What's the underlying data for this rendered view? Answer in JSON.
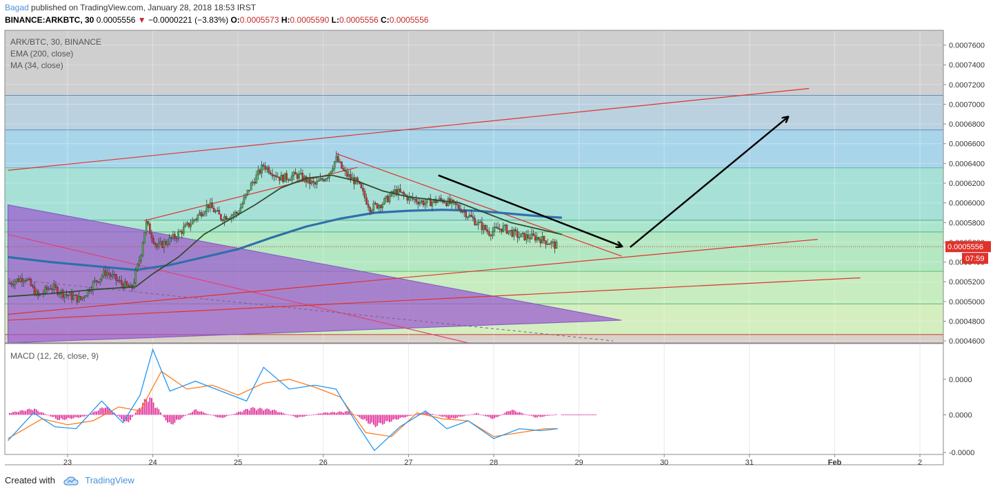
{
  "header": {
    "author": "Bagad",
    "published": "published on TradingView.com, January 28, 2018 18:53 IRST"
  },
  "quote": {
    "symbol": "BINANCE:ARKBTC, 30",
    "last": "0.0005556",
    "change_arrow": "▼",
    "change": "−0.0000221 (−3.83%)",
    "o_label": "O:",
    "o": "0.0005573",
    "h_label": "H:",
    "h": "0.0005590",
    "l_label": "L:",
    "l": "0.0005556",
    "c_label": "C:",
    "c": "0.0005556"
  },
  "legend": {
    "title": "ARK/BTC, 30, BINANCE",
    "ema": "EMA (200, close)",
    "ma": "MA (34, close)",
    "macd": "MACD (12, 26, close, 9)"
  },
  "footer": {
    "created_with": "Created with",
    "brand": "TradingView"
  },
  "colors": {
    "up": "#4caf50",
    "down": "#d32f2f",
    "ema": "#2f6faa",
    "ma": "#2e4d2f",
    "macd_line": "#2196f3",
    "signal_line": "#ff7a1a",
    "hist": "#e0309a",
    "trend_red": "#e0312b",
    "triangle": "#9b59d0",
    "price_tag": "#e0312b"
  },
  "chart_data": [
    {
      "type": "candlestick",
      "title": "ARK/BTC, 30, BINANCE",
      "x_tick_labels": [
        "23",
        "24",
        "25",
        "26",
        "27",
        "28",
        "29",
        "30",
        "31",
        "Feb",
        "2"
      ],
      "y_tick_labels": [
        "0.0004600",
        "0.0004800",
        "0.0005000",
        "0.0005200",
        "0.0005400",
        "0.0005600",
        "0.0005800",
        "0.0006000",
        "0.0006200",
        "0.0006400",
        "0.0006600",
        "0.0006800",
        "0.0007000",
        "0.0007200",
        "0.0007400",
        "0.0007600"
      ],
      "ylim": [
        0.000458,
        0.000775
      ],
      "last_price_label": "0.0005556",
      "countdown_label": "07:59",
      "close_path": [
        {
          "x": 22.3,
          "y": 0.000518
        },
        {
          "x": 22.5,
          "y": 0.000525
        },
        {
          "x": 22.65,
          "y": 0.000505
        },
        {
          "x": 22.8,
          "y": 0.000515
        },
        {
          "x": 22.95,
          "y": 0.000508
        },
        {
          "x": 23.15,
          "y": 0.000502
        },
        {
          "x": 23.3,
          "y": 0.000518
        },
        {
          "x": 23.45,
          "y": 0.00053
        },
        {
          "x": 23.6,
          "y": 0.00052
        },
        {
          "x": 23.75,
          "y": 0.000512
        },
        {
          "x": 23.85,
          "y": 0.000545
        },
        {
          "x": 23.92,
          "y": 0.00058
        },
        {
          "x": 24.05,
          "y": 0.000555
        },
        {
          "x": 24.25,
          "y": 0.000565
        },
        {
          "x": 24.45,
          "y": 0.00058
        },
        {
          "x": 24.65,
          "y": 0.000598
        },
        {
          "x": 24.8,
          "y": 0.000585
        },
        {
          "x": 25.0,
          "y": 0.00059
        },
        {
          "x": 25.15,
          "y": 0.000618
        },
        {
          "x": 25.3,
          "y": 0.000638
        },
        {
          "x": 25.5,
          "y": 0.000625
        },
        {
          "x": 25.7,
          "y": 0.000628
        },
        {
          "x": 25.9,
          "y": 0.000618
        },
        {
          "x": 26.05,
          "y": 0.000628
        },
        {
          "x": 26.15,
          "y": 0.000645
        },
        {
          "x": 26.25,
          "y": 0.00063
        },
        {
          "x": 26.4,
          "y": 0.00062
        },
        {
          "x": 26.55,
          "y": 0.000595
        },
        {
          "x": 26.7,
          "y": 0.0006
        },
        {
          "x": 26.85,
          "y": 0.000612
        },
        {
          "x": 27.0,
          "y": 0.000605
        },
        {
          "x": 27.2,
          "y": 0.0006
        },
        {
          "x": 27.4,
          "y": 0.000603
        },
        {
          "x": 27.6,
          "y": 0.000595
        },
        {
          "x": 27.8,
          "y": 0.00058
        },
        {
          "x": 27.95,
          "y": 0.00057
        },
        {
          "x": 28.1,
          "y": 0.000575
        },
        {
          "x": 28.3,
          "y": 0.000566
        },
        {
          "x": 28.5,
          "y": 0.000565
        },
        {
          "x": 28.65,
          "y": 0.00056
        },
        {
          "x": 28.75,
          "y": 0.0005556
        }
      ],
      "ema_200": [
        {
          "x": 22.3,
          "y": 0.000545
        },
        {
          "x": 22.8,
          "y": 0.00054
        },
        {
          "x": 23.3,
          "y": 0.000536
        },
        {
          "x": 23.8,
          "y": 0.000532
        },
        {
          "x": 24.2,
          "y": 0.000537
        },
        {
          "x": 24.6,
          "y": 0.000545
        },
        {
          "x": 25.0,
          "y": 0.000553
        },
        {
          "x": 25.4,
          "y": 0.000565
        },
        {
          "x": 25.8,
          "y": 0.000576
        },
        {
          "x": 26.2,
          "y": 0.000584
        },
        {
          "x": 26.6,
          "y": 0.00059
        },
        {
          "x": 27.0,
          "y": 0.000592
        },
        {
          "x": 27.4,
          "y": 0.000593
        },
        {
          "x": 27.8,
          "y": 0.000592
        },
        {
          "x": 28.2,
          "y": 0.000589
        },
        {
          "x": 28.6,
          "y": 0.000586
        },
        {
          "x": 28.8,
          "y": 0.000585
        }
      ],
      "ma_34": [
        {
          "x": 22.3,
          "y": 0.000505
        },
        {
          "x": 22.8,
          "y": 0.000508
        },
        {
          "x": 23.3,
          "y": 0.000512
        },
        {
          "x": 23.8,
          "y": 0.000515
        },
        {
          "x": 24.0,
          "y": 0.000528
        },
        {
          "x": 24.3,
          "y": 0.000545
        },
        {
          "x": 24.6,
          "y": 0.000568
        },
        {
          "x": 24.9,
          "y": 0.000583
        },
        {
          "x": 25.2,
          "y": 0.000598
        },
        {
          "x": 25.5,
          "y": 0.000615
        },
        {
          "x": 25.8,
          "y": 0.000625
        },
        {
          "x": 26.1,
          "y": 0.000628
        },
        {
          "x": 26.4,
          "y": 0.000622
        },
        {
          "x": 26.7,
          "y": 0.000612
        },
        {
          "x": 27.0,
          "y": 0.000606
        },
        {
          "x": 27.3,
          "y": 0.000603
        },
        {
          "x": 27.6,
          "y": 0.0006
        },
        {
          "x": 27.9,
          "y": 0.00059
        },
        {
          "x": 28.2,
          "y": 0.00058
        },
        {
          "x": 28.5,
          "y": 0.000574
        },
        {
          "x": 28.8,
          "y": 0.000568
        }
      ],
      "fib_levels": [
        0.000709,
        0.000674,
        0.0006355,
        0.0005825,
        0.0005705,
        0.0005305,
        0.0004975,
        0.0004665
      ],
      "annotations": {
        "upper_channel_line": [
          [
            22.3,
            0.000633
          ],
          [
            31.7,
            0.000716
          ]
        ],
        "lower_channel_line_1": [
          [
            22.3,
            0.000487
          ],
          [
            31.8,
            0.000563
          ]
        ],
        "lower_channel_line_2": [
          [
            22.3,
            0.000481
          ],
          [
            32.3,
            0.000524
          ]
        ],
        "descending_line": [
          [
            26.15,
            0.00065
          ],
          [
            29.5,
            0.000546
          ]
        ],
        "rising_line_from_low": [
          [
            23.9,
            0.000582
          ],
          [
            26.4,
            0.000636
          ]
        ],
        "down_arrow": [
          [
            27.35,
            0.000628
          ],
          [
            29.5,
            0.000556
          ]
        ],
        "up_arrow": [
          [
            29.6,
            0.000555
          ],
          [
            31.45,
            0.000687
          ]
        ],
        "triangle": [
          [
            22.3,
            0.000598
          ],
          [
            29.5,
            0.000481
          ],
          [
            22.3,
            0.000458
          ]
        ]
      }
    },
    {
      "type": "macd",
      "title": "MACD (12, 26, close, 9)",
      "y_tick_labels": [
        "0.0000",
        "0.0000",
        "-0.0000"
      ],
      "ylim": [
        -1e-05,
        1.8e-05
      ],
      "macd_line": [
        {
          "x": 22.3,
          "y": -6.5e-06
        },
        {
          "x": 22.6,
          "y": 5e-07
        },
        {
          "x": 22.85,
          "y": -3e-06
        },
        {
          "x": 23.1,
          "y": -3.5e-06
        },
        {
          "x": 23.4,
          "y": 3.5e-06
        },
        {
          "x": 23.65,
          "y": -2e-06
        },
        {
          "x": 23.85,
          "y": 5e-06
        },
        {
          "x": 24.0,
          "y": 1.65e-05
        },
        {
          "x": 24.2,
          "y": 6e-06
        },
        {
          "x": 24.5,
          "y": 8.5e-06
        },
        {
          "x": 24.8,
          "y": 6e-06
        },
        {
          "x": 25.1,
          "y": 3.5e-06
        },
        {
          "x": 25.3,
          "y": 1.2e-05
        },
        {
          "x": 25.6,
          "y": 6.5e-06
        },
        {
          "x": 25.9,
          "y": 7.5e-06
        },
        {
          "x": 26.15,
          "y": 6.5e-06
        },
        {
          "x": 26.4,
          "y": -2.5e-06
        },
        {
          "x": 26.6,
          "y": -9e-06
        },
        {
          "x": 26.9,
          "y": -3e-06
        },
        {
          "x": 27.2,
          "y": 1e-06
        },
        {
          "x": 27.45,
          "y": -3.5e-06
        },
        {
          "x": 27.7,
          "y": -1.5e-06
        },
        {
          "x": 28.0,
          "y": -6e-06
        },
        {
          "x": 28.3,
          "y": -3.5e-06
        },
        {
          "x": 28.55,
          "y": -4e-06
        },
        {
          "x": 28.75,
          "y": -3.5e-06
        }
      ],
      "signal_line": [
        {
          "x": 22.3,
          "y": -6e-06
        },
        {
          "x": 22.7,
          "y": -1e-06
        },
        {
          "x": 23.0,
          "y": -2.5e-06
        },
        {
          "x": 23.3,
          "y": -1.5e-06
        },
        {
          "x": 23.6,
          "y": 2e-06
        },
        {
          "x": 23.85,
          "y": 1e-06
        },
        {
          "x": 24.1,
          "y": 1.1e-05
        },
        {
          "x": 24.4,
          "y": 6.5e-06
        },
        {
          "x": 24.7,
          "y": 7.5e-06
        },
        {
          "x": 25.0,
          "y": 5e-06
        },
        {
          "x": 25.3,
          "y": 8e-06
        },
        {
          "x": 25.6,
          "y": 9e-06
        },
        {
          "x": 25.9,
          "y": 7e-06
        },
        {
          "x": 26.2,
          "y": 4.5e-06
        },
        {
          "x": 26.5,
          "y": -4.5e-06
        },
        {
          "x": 26.8,
          "y": -5.5e-06
        },
        {
          "x": 27.1,
          "y": 5e-07
        },
        {
          "x": 27.4,
          "y": -1e-06
        },
        {
          "x": 27.7,
          "y": -1.5e-06
        },
        {
          "x": 28.0,
          "y": -5.5e-06
        },
        {
          "x": 28.3,
          "y": -4.5e-06
        },
        {
          "x": 28.6,
          "y": -3.5e-06
        },
        {
          "x": 28.75,
          "y": -3.5e-06
        }
      ],
      "histogram_envelope": [
        {
          "x": 22.3,
          "y": 5e-07
        },
        {
          "x": 22.6,
          "y": 1.8e-06
        },
        {
          "x": 22.9,
          "y": -1.5e-06
        },
        {
          "x": 23.2,
          "y": -5e-07
        },
        {
          "x": 23.45,
          "y": 2.5e-06
        },
        {
          "x": 23.7,
          "y": -2.5e-06
        },
        {
          "x": 23.95,
          "y": 5.5e-06
        },
        {
          "x": 24.2,
          "y": -3e-06
        },
        {
          "x": 24.5,
          "y": 1.5e-06
        },
        {
          "x": 24.8,
          "y": -1e-06
        },
        {
          "x": 25.15,
          "y": 2e-06
        },
        {
          "x": 25.4,
          "y": 1.5e-06
        },
        {
          "x": 25.7,
          "y": -8e-07
        },
        {
          "x": 26.0,
          "y": 6e-07
        },
        {
          "x": 26.3,
          "y": 1e-06
        },
        {
          "x": 26.6,
          "y": -3.2e-06
        },
        {
          "x": 26.9,
          "y": -1e-06
        },
        {
          "x": 27.2,
          "y": 8e-07
        },
        {
          "x": 27.5,
          "y": -1.2e-06
        },
        {
          "x": 27.8,
          "y": 5e-07
        },
        {
          "x": 28.0,
          "y": -1.2e-06
        },
        {
          "x": 28.2,
          "y": 1.5e-06
        },
        {
          "x": 28.5,
          "y": -8e-07
        },
        {
          "x": 28.75,
          "y": 2e-07
        }
      ]
    }
  ]
}
